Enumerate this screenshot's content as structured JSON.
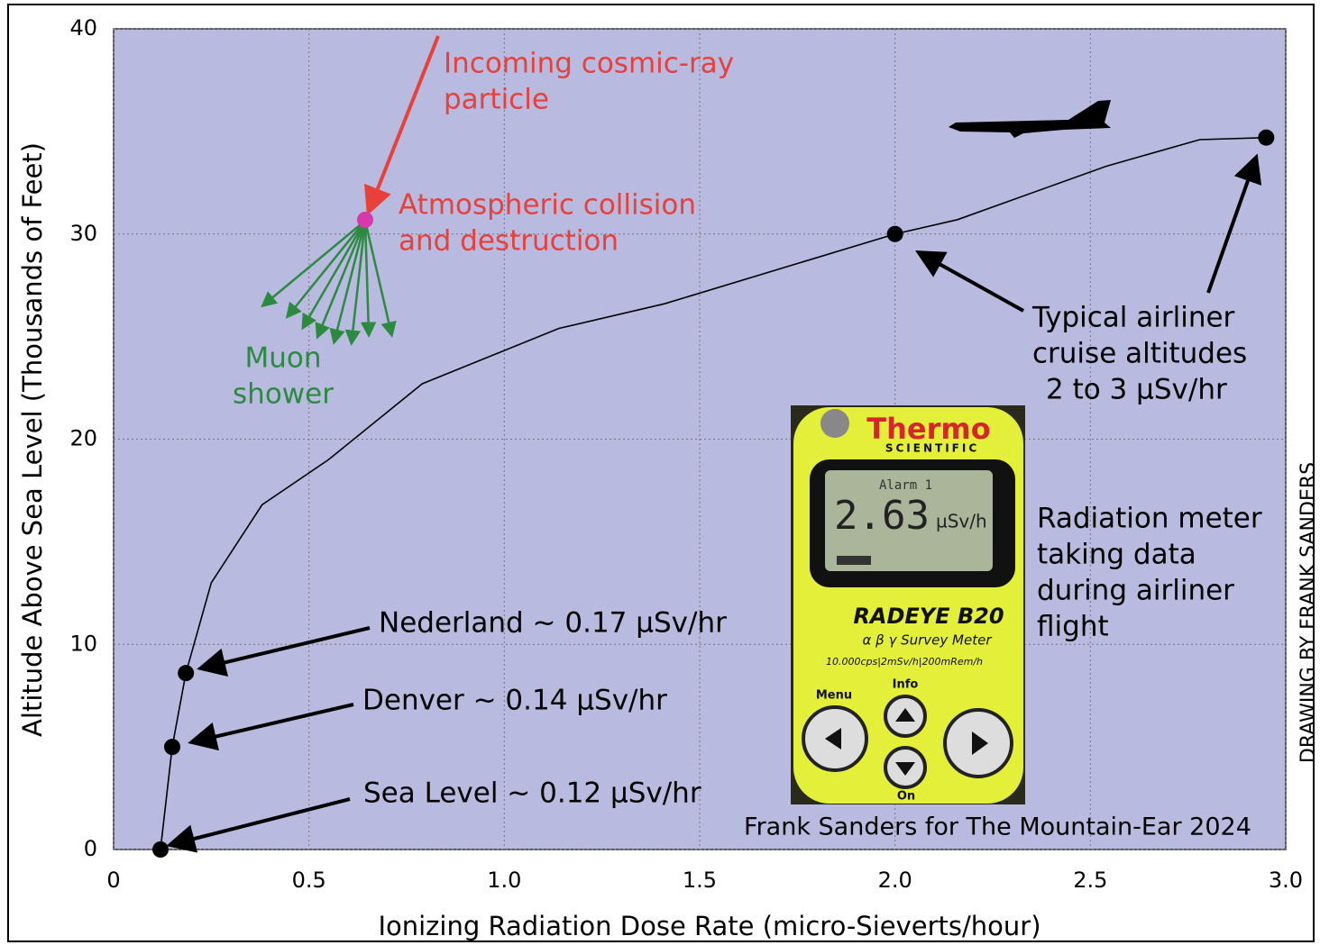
{
  "chart_data": {
    "type": "line",
    "x_label": "Ionizing Radiation Dose Rate (micro-Sieverts/hour)",
    "y_label": "Altitude Above Sea Level (Thousands of Feet)",
    "x": [
      0.12,
      0.15,
      0.185,
      0.25,
      0.38,
      0.55,
      0.79,
      1.14,
      1.41,
      2.0,
      2.16,
      2.54,
      2.78,
      2.95
    ],
    "values": [
      0,
      5,
      8.6,
      13,
      16.8,
      19,
      22.7,
      25.4,
      26.6,
      30,
      30.7,
      33.3,
      34.6,
      34.7
    ],
    "color": "#000000",
    "markers": {
      "x": [
        0.12,
        0.15,
        0.185,
        2.0,
        2.95
      ],
      "values": [
        0,
        5,
        8.6,
        30,
        34.7
      ],
      "color": "#000000"
    },
    "xlim": [
      0,
      3
    ],
    "ylim": [
      0,
      40
    ],
    "xticks": [
      0,
      0.5,
      {
        "value": 1,
        "label": "1.0"
      },
      1.5,
      {
        "value": 2,
        "label": "2.0"
      },
      2.5,
      {
        "value": 3,
        "label": "3.0"
      }
    ],
    "yticks": [
      0,
      10,
      20,
      30,
      40
    ],
    "grid": true,
    "background": "#b9badf",
    "annotations": {
      "cosmic": [
        "Incoming cosmic-ray",
        "particle"
      ],
      "collision": [
        "Atmospheric collision",
        "and destruction"
      ],
      "muon": [
        "Muon",
        "shower"
      ],
      "airliner": [
        "Typical airliner",
        "cruise altitudes",
        "2 to 3 µSv/hr"
      ],
      "meter_note": [
        "Radiation meter",
        "taking data",
        "during airliner",
        "flight"
      ],
      "nederland": "Nederland ~ 0.17 µSv/hr",
      "denver": "Denver ~ 0.14 µSv/hr",
      "sea_level": "Sea Level ~ 0.12 µSv/hr",
      "credit": "Frank Sanders for The Mountain-Ear 2024",
      "side_credit": "DRAWING BY FRANK SANDERS"
    },
    "meter": {
      "brand": "Thermo",
      "sub": "SCIENTIFIC",
      "alarm": "Alarm 1",
      "reading": "2.63",
      "unit": "µSv/h",
      "model": "RADEYE B20",
      "kind": "α β γ Survey Meter",
      "spec": "10.000cps|2mSv/h|200mRem/h",
      "menu": "Menu",
      "info": "Info",
      "on": "On"
    }
  }
}
